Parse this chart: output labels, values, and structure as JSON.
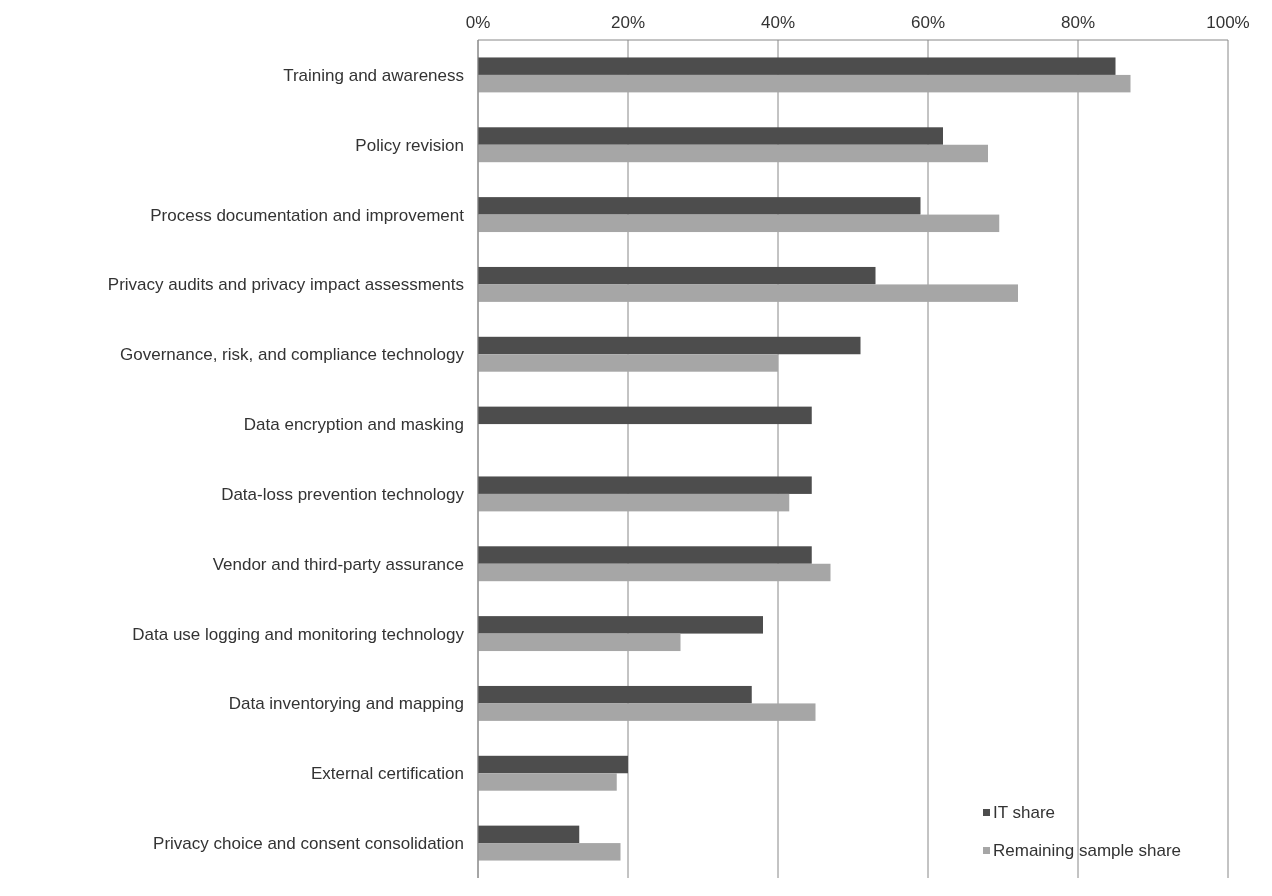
{
  "chart_data": {
    "type": "bar",
    "orientation": "horizontal",
    "categories": [
      "Training and awareness",
      "Policy revision",
      "Process documentation and improvement",
      "Privacy audits and privacy impact assessments",
      "Governance, risk, and compliance technology",
      "Data encryption and masking",
      "Data-loss prevention technology",
      "Vendor and third-party assurance",
      "Data use logging and monitoring technology",
      "Data inventorying and mapping",
      "External certification",
      "Privacy choice and consent consolidation"
    ],
    "series": [
      {
        "name": "IT share",
        "color": "#4d4d4d",
        "values": [
          85,
          62,
          59,
          53,
          51,
          44.5,
          44.5,
          44.5,
          38,
          36.5,
          20,
          13.5
        ]
      },
      {
        "name": "Remaining sample share",
        "color": "#a6a6a6",
        "values": [
          87,
          68,
          69.5,
          72,
          40,
          null,
          41.5,
          47,
          27,
          45,
          18.5,
          19
        ]
      }
    ],
    "xlim": [
      0,
      100
    ],
    "xticks": [
      {
        "value": 0,
        "label": "0%"
      },
      {
        "value": 20,
        "label": "20%"
      },
      {
        "value": 40,
        "label": "40%"
      },
      {
        "value": 60,
        "label": "60%"
      },
      {
        "value": 80,
        "label": "80%"
      },
      {
        "value": 100,
        "label": "100%"
      }
    ],
    "grid": "x",
    "legend": "bottom right"
  }
}
